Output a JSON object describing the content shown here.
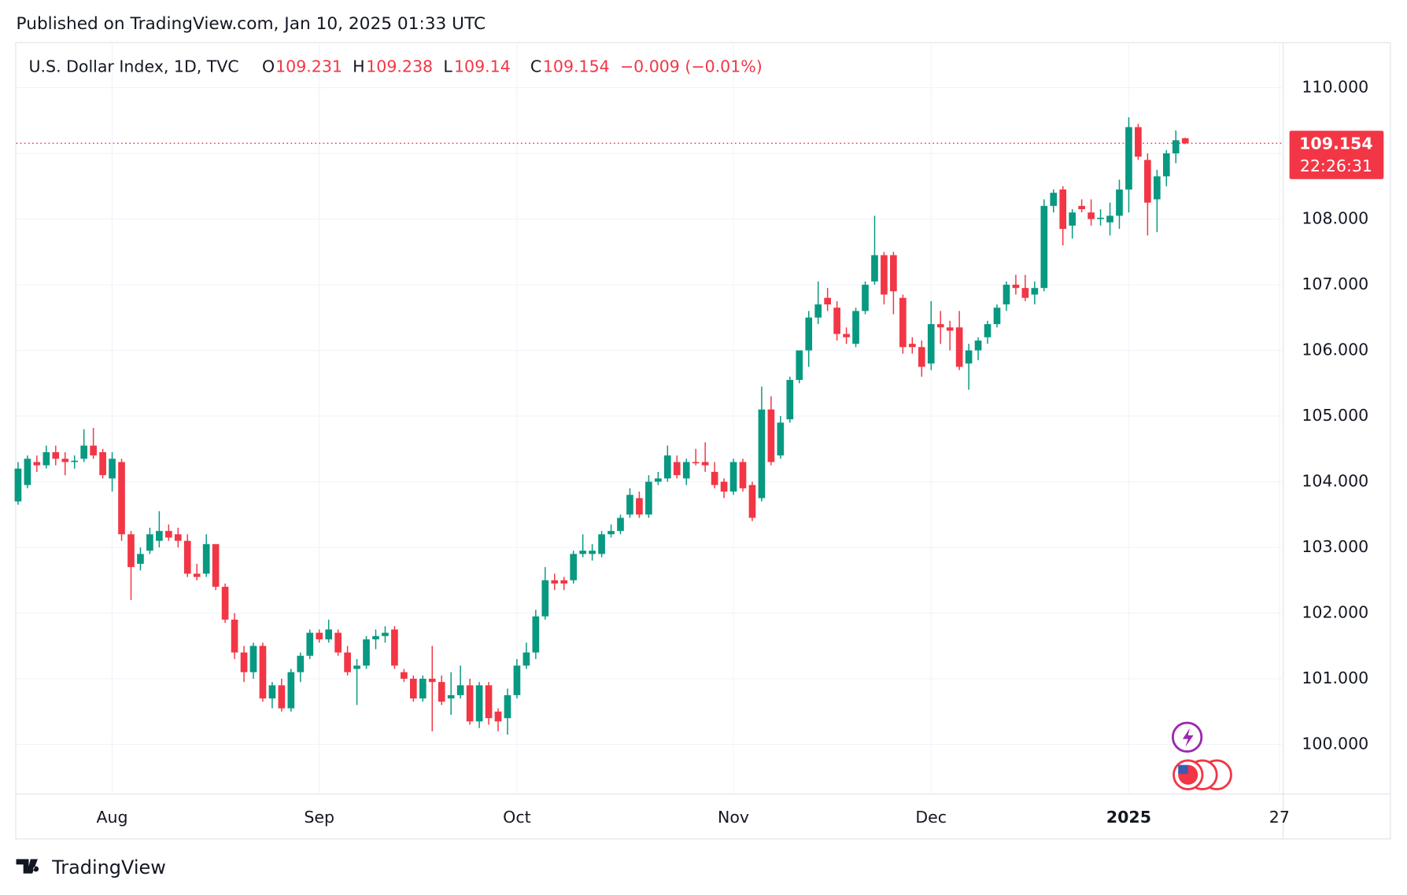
{
  "chart_data": {
    "type": "candlestick",
    "published": "Published on TradingView.com, Jan 10, 2025 01:33 UTC",
    "title": "U.S. Dollar Index, 1D, TVC",
    "ohlc_labels": [
      "O",
      "H",
      "L",
      "C"
    ],
    "change": "−0.009 (−0.01%)",
    "countdown": "22:26:31",
    "brand": "TradingView",
    "up_color": "#089981",
    "down_color": "#f23645",
    "grid": true,
    "ylim": [
      99.25,
      110.68
    ],
    "xlim": [
      -0.2,
      134.4
    ],
    "yticks": [
      {
        "value": 100,
        "label": "100.000"
      },
      {
        "value": 101,
        "label": "101.000"
      },
      {
        "value": 102,
        "label": "102.000"
      },
      {
        "value": 103,
        "label": "103.000"
      },
      {
        "value": 104,
        "label": "104.000"
      },
      {
        "value": 105,
        "label": "105.000"
      },
      {
        "value": 106,
        "label": "106.000"
      },
      {
        "value": 107,
        "label": "107.000"
      },
      {
        "value": 108,
        "label": "108.000"
      },
      {
        "value": 109,
        "label": "109.000"
      },
      {
        "value": 110,
        "label": "110.000"
      }
    ],
    "xticks": [
      {
        "value": 10,
        "label": "Aug"
      },
      {
        "value": 32,
        "label": "Sep"
      },
      {
        "value": 53,
        "label": "Oct"
      },
      {
        "value": 76,
        "label": "Nov"
      },
      {
        "value": 97,
        "label": "Dec"
      },
      {
        "value": 118,
        "label": "2025"
      },
      {
        "value": 134,
        "label": "27"
      }
    ],
    "open": [
      103.7,
      103.95,
      104.3,
      104.25,
      104.45,
      104.35,
      104.3,
      104.35,
      104.55,
      104.45,
      104.05,
      104.3,
      103.2,
      102.75,
      102.95,
      103.1,
      103.25,
      103.2,
      103.1,
      102.6,
      102.6,
      103.05,
      102.4,
      101.9,
      101.4,
      101.1,
      101.5,
      100.7,
      100.9,
      100.55,
      101.1,
      101.35,
      101.7,
      101.6,
      101.7,
      101.4,
      101.15,
      101.2,
      101.6,
      101.65,
      101.75,
      101.1,
      101.0,
      100.7,
      101.0,
      100.95,
      100.7,
      100.75,
      100.9,
      100.35,
      100.9,
      100.5,
      100.4,
      100.75,
      101.2,
      101.4,
      101.95,
      102.5,
      102.5,
      102.5,
      102.9,
      102.9,
      102.9,
      103.2,
      103.25,
      103.5,
      103.75,
      103.5,
      104.0,
      104.05,
      104.3,
      104.05,
      104.3,
      104.3,
      104.15,
      104.0,
      103.85,
      104.3,
      103.95,
      103.75,
      105.1,
      104.4,
      104.95,
      105.55,
      106.0,
      106.5,
      106.8,
      106.65,
      106.25,
      106.1,
      106.6,
      107.05,
      107.45,
      107.45,
      106.8,
      106.1,
      106.05,
      105.8,
      106.4,
      106.35,
      106.35,
      105.8,
      106.0,
      106.2,
      106.4,
      106.7,
      107.0,
      106.95,
      106.85,
      106.95,
      108.2,
      108.45,
      107.9,
      108.2,
      108.1,
      108.0,
      107.95,
      108.05,
      108.45,
      109.4,
      108.9,
      108.3,
      108.65,
      109.0,
      109.231
    ],
    "high": [
      104.3,
      104.4,
      104.4,
      104.55,
      104.55,
      104.45,
      104.4,
      104.8,
      104.82,
      104.5,
      104.45,
      104.35,
      103.25,
      103.0,
      103.3,
      103.55,
      103.35,
      103.3,
      103.2,
      102.75,
      103.2,
      103.05,
      102.45,
      102.0,
      101.5,
      101.55,
      101.55,
      100.95,
      101.0,
      101.15,
      101.4,
      101.75,
      101.75,
      101.9,
      101.75,
      101.5,
      101.3,
      101.65,
      101.75,
      101.8,
      101.8,
      101.15,
      101.05,
      101.05,
      101.5,
      101.05,
      101.1,
      101.2,
      101.0,
      100.95,
      100.95,
      100.55,
      100.85,
      101.3,
      101.55,
      102.05,
      102.7,
      102.6,
      102.55,
      102.95,
      103.2,
      103.05,
      103.25,
      103.35,
      103.5,
      103.9,
      103.85,
      104.1,
      104.15,
      104.55,
      104.4,
      104.35,
      104.5,
      104.6,
      104.3,
      104.05,
      104.35,
      104.35,
      104.0,
      105.45,
      105.3,
      105.0,
      105.6,
      106.0,
      106.6,
      107.05,
      106.95,
      106.75,
      106.35,
      106.65,
      107.05,
      108.05,
      107.5,
      107.5,
      106.85,
      106.2,
      106.15,
      106.75,
      106.6,
      106.45,
      106.6,
      106.1,
      106.2,
      106.45,
      106.7,
      107.05,
      107.15,
      107.15,
      107.05,
      108.3,
      108.45,
      108.5,
      108.15,
      108.3,
      108.3,
      108.15,
      108.25,
      108.6,
      109.55,
      109.45,
      109.0,
      108.75,
      109.05,
      109.35,
      109.238
    ],
    "low": [
      103.65,
      103.9,
      104.15,
      104.2,
      104.25,
      104.1,
      104.2,
      104.3,
      104.35,
      104.05,
      103.85,
      103.1,
      102.2,
      102.65,
      102.9,
      103.0,
      103.1,
      103.0,
      102.55,
      102.5,
      102.55,
      102.35,
      101.85,
      101.3,
      100.95,
      101.0,
      100.65,
      100.55,
      100.5,
      100.5,
      100.95,
      101.3,
      101.55,
      101.55,
      101.35,
      101.05,
      100.6,
      101.15,
      101.45,
      101.55,
      101.15,
      100.95,
      100.65,
      100.65,
      100.2,
      100.6,
      100.45,
      100.7,
      100.3,
      100.25,
      100.3,
      100.2,
      100.15,
      100.7,
      101.15,
      101.3,
      101.9,
      102.35,
      102.35,
      102.45,
      102.85,
      102.8,
      102.85,
      103.15,
      103.2,
      103.45,
      103.45,
      103.45,
      103.95,
      104.0,
      104.05,
      103.95,
      104.25,
      104.15,
      103.9,
      103.75,
      103.8,
      103.85,
      103.4,
      103.7,
      104.25,
      104.35,
      104.9,
      105.5,
      105.75,
      106.4,
      106.6,
      106.15,
      106.1,
      106.05,
      106.55,
      107.0,
      106.7,
      106.55,
      105.95,
      105.95,
      105.6,
      105.7,
      106.1,
      106.0,
      105.7,
      105.4,
      105.85,
      106.1,
      106.35,
      106.6,
      106.85,
      106.75,
      106.7,
      106.9,
      108.1,
      107.6,
      107.7,
      108.1,
      107.9,
      107.9,
      107.75,
      107.85,
      108.1,
      108.9,
      107.75,
      107.8,
      108.5,
      108.85,
      109.14
    ],
    "close": [
      104.2,
      104.35,
      104.25,
      104.45,
      104.35,
      104.3,
      104.32,
      104.55,
      104.4,
      104.1,
      104.35,
      103.2,
      102.7,
      102.9,
      103.2,
      103.25,
      103.15,
      103.1,
      102.6,
      102.55,
      103.05,
      102.4,
      101.9,
      101.4,
      101.1,
      101.5,
      100.7,
      100.9,
      100.55,
      101.1,
      101.35,
      101.7,
      101.6,
      101.75,
      101.4,
      101.1,
      101.2,
      101.6,
      101.65,
      101.7,
      101.2,
      101.0,
      100.7,
      101.0,
      100.95,
      100.65,
      100.75,
      100.9,
      100.35,
      100.9,
      100.4,
      100.35,
      100.75,
      101.2,
      101.4,
      101.95,
      102.5,
      102.45,
      102.45,
      102.9,
      102.95,
      102.95,
      103.2,
      103.25,
      103.45,
      103.8,
      103.5,
      104.0,
      104.05,
      104.4,
      104.1,
      104.3,
      104.28,
      104.25,
      103.95,
      103.85,
      104.3,
      103.9,
      103.45,
      105.1,
      104.3,
      104.9,
      105.55,
      106.0,
      106.5,
      106.7,
      106.7,
      106.25,
      106.2,
      106.6,
      107.0,
      107.45,
      106.85,
      106.9,
      106.05,
      106.05,
      105.75,
      106.4,
      106.35,
      106.3,
      105.75,
      106.0,
      106.15,
      106.4,
      106.65,
      107.0,
      106.95,
      106.8,
      106.95,
      108.2,
      108.4,
      107.85,
      108.1,
      108.15,
      108.0,
      108.02,
      108.05,
      108.45,
      109.4,
      108.95,
      108.25,
      108.65,
      109.0,
      109.2,
      109.154
    ]
  }
}
